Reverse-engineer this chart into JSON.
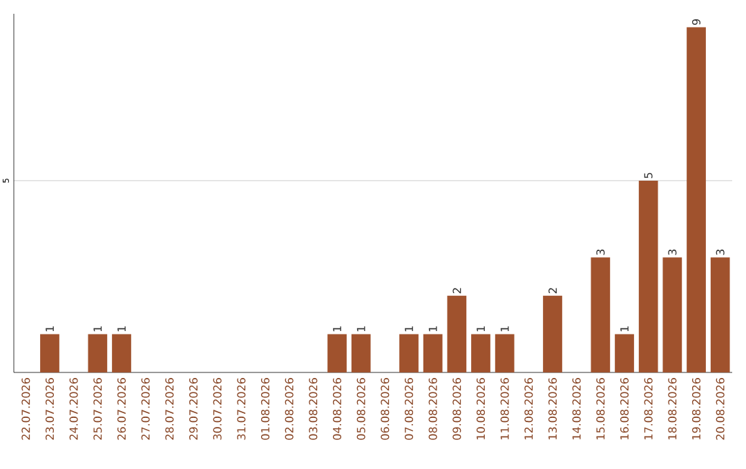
{
  "chart_data": {
    "type": "bar",
    "categories": [
      "22.07.2026",
      "23.07.2026",
      "24.07.2026",
      "25.07.2026",
      "26.07.2026",
      "27.07.2026",
      "28.07.2026",
      "29.07.2026",
      "30.07.2026",
      "31.07.2026",
      "01.08.2026",
      "02.08.2026",
      "03.08.2026",
      "04.08.2026",
      "05.08.2026",
      "06.08.2026",
      "07.08.2026",
      "08.08.2026",
      "09.08.2026",
      "10.08.2026",
      "11.08.2026",
      "12.08.2026",
      "13.08.2026",
      "14.08.2026",
      "15.08.2026",
      "16.08.2026",
      "17.08.2026",
      "18.08.2026",
      "19.08.2026",
      "20.08.2026"
    ],
    "values": [
      0,
      1,
      0,
      1,
      1,
      0,
      0,
      0,
      0,
      0,
      0,
      0,
      0,
      1,
      1,
      0,
      1,
      1,
      2,
      1,
      1,
      0,
      2,
      0,
      3,
      1,
      5,
      3,
      9,
      3
    ],
    "value_labels": [
      null,
      "1",
      null,
      "1",
      "1",
      null,
      null,
      null,
      null,
      null,
      null,
      null,
      null,
      "1",
      "1",
      null,
      "1",
      "1",
      "2",
      "1",
      "1",
      null,
      "2",
      null,
      "3",
      "1",
      "5",
      "3",
      "9",
      "3"
    ],
    "color": "#a0522d",
    "ylim": [
      0,
      9.35
    ],
    "yticks": [
      5
    ],
    "grid": "y"
  }
}
